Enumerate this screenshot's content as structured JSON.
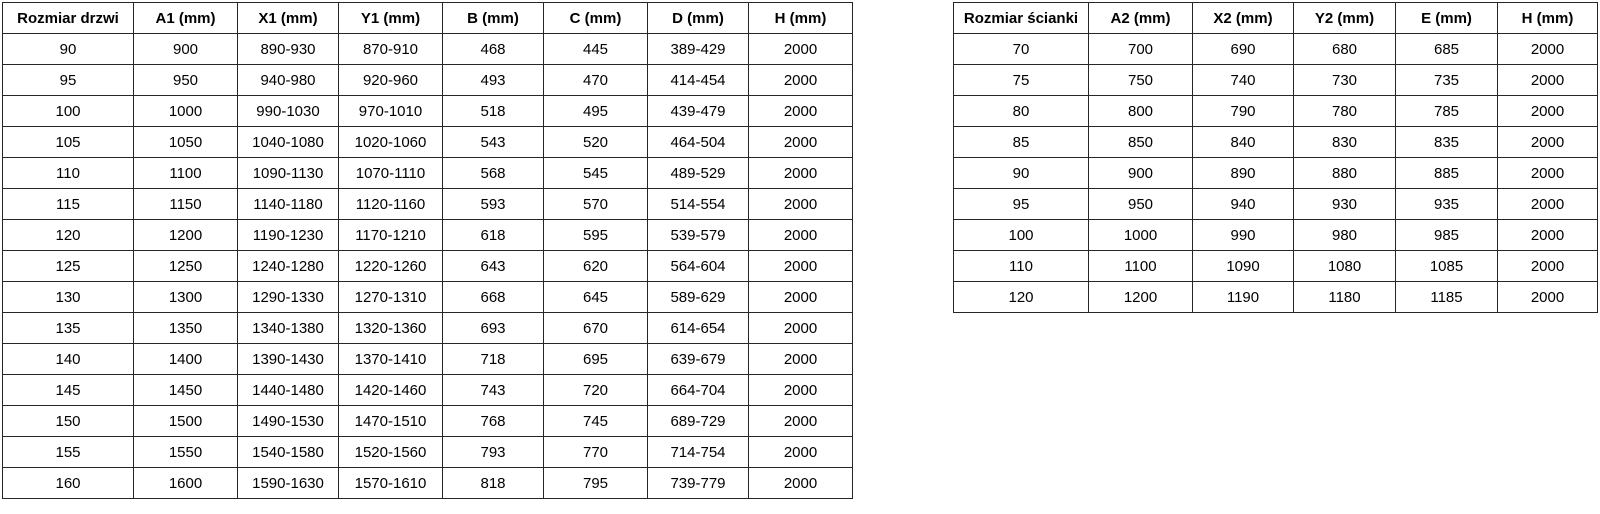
{
  "door_table": {
    "headers": [
      "Rozmiar drzwi",
      "A1 (mm)",
      "X1 (mm)",
      "Y1 (mm)",
      "B (mm)",
      "C (mm)",
      "D (mm)",
      "H (mm)"
    ],
    "rows": [
      [
        "90",
        "900",
        "890-930",
        "870-910",
        "468",
        "445",
        "389-429",
        "2000"
      ],
      [
        "95",
        "950",
        "940-980",
        "920-960",
        "493",
        "470",
        "414-454",
        "2000"
      ],
      [
        "100",
        "1000",
        "990-1030",
        "970-1010",
        "518",
        "495",
        "439-479",
        "2000"
      ],
      [
        "105",
        "1050",
        "1040-1080",
        "1020-1060",
        "543",
        "520",
        "464-504",
        "2000"
      ],
      [
        "110",
        "1100",
        "1090-1130",
        "1070-1110",
        "568",
        "545",
        "489-529",
        "2000"
      ],
      [
        "115",
        "1150",
        "1140-1180",
        "1120-1160",
        "593",
        "570",
        "514-554",
        "2000"
      ],
      [
        "120",
        "1200",
        "1190-1230",
        "1170-1210",
        "618",
        "595",
        "539-579",
        "2000"
      ],
      [
        "125",
        "1250",
        "1240-1280",
        "1220-1260",
        "643",
        "620",
        "564-604",
        "2000"
      ],
      [
        "130",
        "1300",
        "1290-1330",
        "1270-1310",
        "668",
        "645",
        "589-629",
        "2000"
      ],
      [
        "135",
        "1350",
        "1340-1380",
        "1320-1360",
        "693",
        "670",
        "614-654",
        "2000"
      ],
      [
        "140",
        "1400",
        "1390-1430",
        "1370-1410",
        "718",
        "695",
        "639-679",
        "2000"
      ],
      [
        "145",
        "1450",
        "1440-1480",
        "1420-1460",
        "743",
        "720",
        "664-704",
        "2000"
      ],
      [
        "150",
        "1500",
        "1490-1530",
        "1470-1510",
        "768",
        "745",
        "689-729",
        "2000"
      ],
      [
        "155",
        "1550",
        "1540-1580",
        "1520-1560",
        "793",
        "770",
        "714-754",
        "2000"
      ],
      [
        "160",
        "1600",
        "1590-1630",
        "1570-1610",
        "818",
        "795",
        "739-779",
        "2000"
      ]
    ]
  },
  "wall_table": {
    "headers": [
      "Rozmiar ścianki",
      "A2 (mm)",
      "X2 (mm)",
      "Y2 (mm)",
      "E (mm)",
      "H (mm)"
    ],
    "rows": [
      [
        "70",
        "700",
        "690",
        "680",
        "685",
        "2000"
      ],
      [
        "75",
        "750",
        "740",
        "730",
        "735",
        "2000"
      ],
      [
        "80",
        "800",
        "790",
        "780",
        "785",
        "2000"
      ],
      [
        "85",
        "850",
        "840",
        "830",
        "835",
        "2000"
      ],
      [
        "90",
        "900",
        "890",
        "880",
        "885",
        "2000"
      ],
      [
        "95",
        "950",
        "940",
        "930",
        "935",
        "2000"
      ],
      [
        "100",
        "1000",
        "990",
        "980",
        "985",
        "2000"
      ],
      [
        "110",
        "1100",
        "1090",
        "1080",
        "1085",
        "2000"
      ],
      [
        "120",
        "1200",
        "1190",
        "1180",
        "1185",
        "2000"
      ]
    ]
  }
}
